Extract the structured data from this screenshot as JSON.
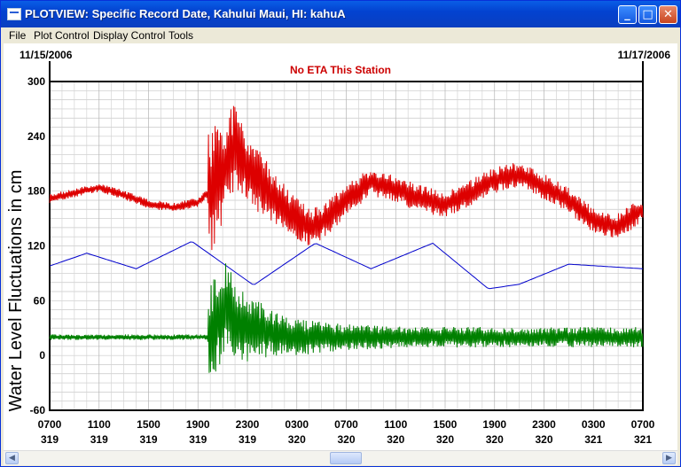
{
  "window": {
    "title": "PLOTVIEW: Specific Record Date, Kahului Maui, HI: kahuA",
    "controls": {
      "minimize": "minimize-icon",
      "maximize": "maximize-icon",
      "close": "close-icon"
    }
  },
  "menu": [
    "File",
    "Plot Control",
    "Display Control",
    "Tools"
  ],
  "plot": {
    "start_date": "11/15/2006",
    "end_date": "11/17/2006",
    "notice": "No ETA This Station",
    "notice_color": "#cc0000"
  },
  "chart_data": {
    "type": "line",
    "ylabel": "Water Level Fluctuations in cm",
    "ylim": [
      -60,
      300
    ],
    "yticks": [
      300,
      240,
      180,
      120,
      60,
      0,
      -60
    ],
    "grid": true,
    "xtick_times": [
      "0700",
      "1100",
      "1500",
      "1900",
      "2300",
      "0300",
      "0700",
      "1100",
      "1500",
      "1900",
      "2300",
      "0300",
      "0700"
    ],
    "xtick_days": [
      "319",
      "319",
      "319",
      "319",
      "319",
      "320",
      "320",
      "320",
      "320",
      "320",
      "320",
      "321",
      "321"
    ],
    "x_hours_range": [
      0,
      48
    ],
    "series": [
      {
        "color": "#dd0000",
        "key": [
          [
            0,
            172
          ],
          [
            2,
            178
          ],
          [
            4,
            184
          ],
          [
            6,
            176
          ],
          [
            8,
            166
          ],
          [
            10,
            162
          ],
          [
            12,
            168
          ],
          [
            13,
            180
          ],
          [
            14,
            200
          ],
          [
            15,
            230
          ],
          [
            16,
            205
          ],
          [
            18,
            175
          ],
          [
            20,
            150
          ],
          [
            21,
            140
          ],
          [
            22,
            145
          ],
          [
            24,
            170
          ],
          [
            26,
            190
          ],
          [
            28,
            182
          ],
          [
            30,
            172
          ],
          [
            32,
            165
          ],
          [
            34,
            178
          ],
          [
            36,
            192
          ],
          [
            38,
            198
          ],
          [
            40,
            185
          ],
          [
            42,
            170
          ],
          [
            44,
            148
          ],
          [
            46,
            142
          ],
          [
            48,
            160
          ]
        ]
      },
      {
        "color": "#0000cc",
        "key": [
          [
            0,
            98
          ],
          [
            3,
            112
          ],
          [
            7,
            95
          ],
          [
            11.5,
            125
          ],
          [
            16.5,
            77
          ],
          [
            21.5,
            123
          ],
          [
            26,
            95
          ],
          [
            31,
            123
          ],
          [
            35.5,
            73
          ],
          [
            38,
            78
          ],
          [
            42,
            100
          ],
          [
            48,
            95
          ]
        ]
      },
      {
        "color": "#008000",
        "key": [
          [
            0,
            20
          ],
          [
            13,
            20
          ],
          [
            14,
            55
          ],
          [
            15,
            40
          ],
          [
            16,
            30
          ],
          [
            20,
            20
          ],
          [
            48,
            20
          ]
        ]
      }
    ]
  },
  "scrollbar": {
    "left": "scroll-left-icon",
    "right": "scroll-right-icon"
  }
}
